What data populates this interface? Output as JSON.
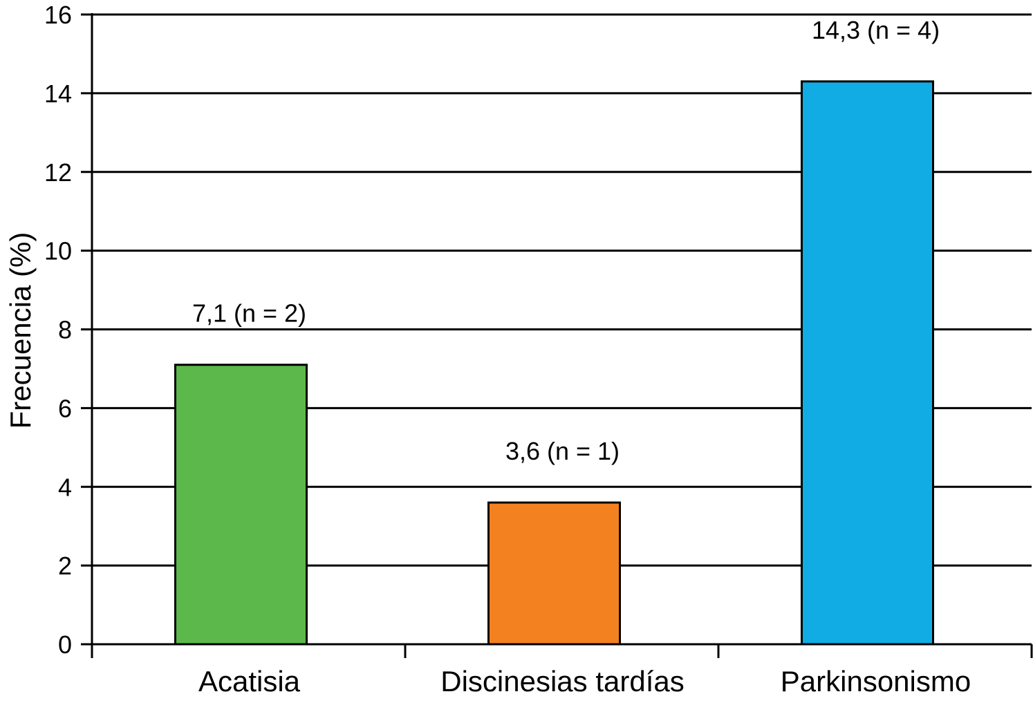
{
  "chart_data": {
    "type": "bar",
    "categories": [
      "Acatisia",
      "Discinesias tardías",
      "Parkinsonismo"
    ],
    "values": [
      7.1,
      3.6,
      14.3
    ],
    "data_labels": [
      "7,1 (n = 2)",
      "3,6 (n = 1)",
      "14,3 (n = 4)"
    ],
    "colors": [
      "#5cb84a",
      "#f48120",
      "#10ace3"
    ],
    "title": "",
    "xlabel": "",
    "ylabel": "Frecuencia (%)",
    "ylim": [
      0,
      16
    ],
    "yticks": [
      0,
      2,
      4,
      6,
      8,
      10,
      12,
      14,
      16
    ],
    "ytick_labels": [
      "0",
      "2",
      "4",
      "6",
      "8",
      "10",
      "12",
      "14",
      "16"
    ],
    "grid": true,
    "legend": "none"
  }
}
